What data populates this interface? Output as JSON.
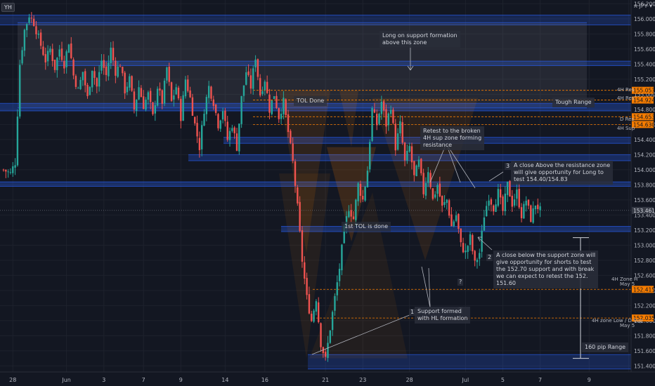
{
  "header": {
    "symbol_badge": "YH",
    "currency": "JPY"
  },
  "annotations": {
    "long_support": "Long on support formation\nabove this zone",
    "tol_done": "TOL Done",
    "tough_range": "Tough Range",
    "retest": "Retest to the broken\n4H sup zone forming\nresistance",
    "note3_num": "3",
    "note3": "A close Above the resistance zone\nwill give opportunity for Long to\ntest 154.40/154.83",
    "first_tol": "1st TOL is done",
    "note2_num": "2",
    "note2": "A close below the support zone will\ngive opportunity for shorts to test\nthe 152.70 support and with break\nwe can expect to retest the 152.\n151.60",
    "q1": "?",
    "q2": "?",
    "note1_num": "1",
    "note1": "Support formed\nwith HL formation",
    "pip_range": "160 pip Range"
  },
  "level_labels": {
    "h4_res_1": "4H Res",
    "h4_res_2": "4H Res",
    "d_res": "D Res",
    "h4_sup": "4H Sup",
    "h4_zone_h": "4H Zone H",
    "may5_1": "May 5",
    "h4_zone_low": "4H zone Low / D Sup",
    "may5_2": "May 5"
  },
  "price_tags": [
    {
      "label": "155.053",
      "value": 155.053,
      "bg": "#f57c00",
      "fg": "#131722"
    },
    {
      "label": "154.924",
      "value": 154.924,
      "bg": "#f57c00",
      "fg": "#131722"
    },
    {
      "label": "154.653",
      "value": 154.703,
      "bg": "#f57c00",
      "fg": "#131722"
    },
    {
      "label": "154.630",
      "value": 154.6,
      "bg": "#f57c00",
      "fg": "#131722"
    },
    {
      "label": "153.461",
      "value": 153.461,
      "bg": "#363a45",
      "fg": "#d1d4dc"
    },
    {
      "label": "152.415",
      "value": 152.415,
      "bg": "#f57c00",
      "fg": "#131722"
    },
    {
      "label": "152.035",
      "value": 152.035,
      "bg": "#f57c00",
      "fg": "#131722"
    }
  ],
  "colors": {
    "up": "#26a69a",
    "down": "#ef5350",
    "zone": "#2962ff",
    "orange": "#f57c00",
    "bg": "#131722"
  },
  "chart_data": {
    "type": "candlestick",
    "ylim": [
      151.32,
      156.25
    ],
    "y_ticks": [
      151.4,
      151.6,
      151.8,
      152.0,
      152.2,
      152.4,
      152.6,
      152.8,
      153.0,
      153.2,
      153.4,
      153.6,
      153.8,
      154.0,
      154.2,
      154.4,
      154.6,
      154.8,
      155.0,
      155.2,
      155.4,
      155.6,
      155.8,
      156.0,
      156.2
    ],
    "x_labels": [
      "28",
      "Jun",
      "3",
      "7",
      "9",
      "14",
      "16",
      "21",
      "23",
      "28",
      "Jul",
      "5",
      "7",
      "9",
      "14"
    ],
    "x_count": 250,
    "x_label_index": [
      4,
      27,
      43,
      60,
      76,
      95,
      112,
      138,
      154,
      174,
      198,
      214,
      230,
      251,
      268
    ],
    "path": [
      [
        0,
        154.0
      ],
      [
        3,
        153.95
      ],
      [
        5,
        154.1
      ],
      [
        7,
        155.4
      ],
      [
        9,
        155.85
      ],
      [
        11,
        156.05
      ],
      [
        13,
        155.95
      ],
      [
        15,
        155.75
      ],
      [
        18,
        155.45
      ],
      [
        20,
        155.6
      ],
      [
        22,
        155.35
      ],
      [
        24,
        155.6
      ],
      [
        26,
        155.4
      ],
      [
        28,
        155.7
      ],
      [
        30,
        155.25
      ],
      [
        32,
        155.05
      ],
      [
        34,
        155.3
      ],
      [
        36,
        154.95
      ],
      [
        38,
        155.35
      ],
      [
        40,
        155.1
      ],
      [
        42,
        155.45
      ],
      [
        44,
        155.25
      ],
      [
        46,
        155.6
      ],
      [
        48,
        155.3
      ],
      [
        50,
        155.4
      ],
      [
        52,
        155.05
      ],
      [
        54,
        155.2
      ],
      [
        56,
        154.8
      ],
      [
        58,
        155.1
      ],
      [
        60,
        154.85
      ],
      [
        62,
        155.0
      ],
      [
        64,
        154.7
      ],
      [
        66,
        155.1
      ],
      [
        68,
        154.9
      ],
      [
        70,
        155.35
      ],
      [
        72,
        154.9
      ],
      [
        74,
        155.1
      ],
      [
        76,
        154.7
      ],
      [
        78,
        155.2
      ],
      [
        80,
        154.95
      ],
      [
        82,
        154.6
      ],
      [
        84,
        154.3
      ],
      [
        86,
        154.8
      ],
      [
        88,
        155.1
      ],
      [
        90,
        154.9
      ],
      [
        92,
        154.6
      ],
      [
        94,
        154.8
      ],
      [
        96,
        154.4
      ],
      [
        98,
        154.6
      ],
      [
        100,
        154.3
      ],
      [
        102,
        154.95
      ],
      [
        104,
        155.3
      ],
      [
        106,
        155.1
      ],
      [
        108,
        155.5
      ],
      [
        110,
        155.0
      ],
      [
        112,
        155.2
      ],
      [
        114,
        154.8
      ],
      [
        116,
        155.0
      ],
      [
        118,
        154.7
      ],
      [
        120,
        154.9
      ],
      [
        122,
        154.5
      ],
      [
        124,
        154.1
      ],
      [
        126,
        153.5
      ],
      [
        128,
        152.8
      ],
      [
        130,
        152.3
      ],
      [
        132,
        152.0
      ],
      [
        134,
        152.3
      ],
      [
        136,
        151.7
      ],
      [
        138,
        151.48
      ],
      [
        140,
        151.9
      ],
      [
        142,
        152.3
      ],
      [
        144,
        152.7
      ],
      [
        146,
        153.2
      ],
      [
        148,
        153.5
      ],
      [
        150,
        153.35
      ],
      [
        152,
        153.8
      ],
      [
        154,
        153.6
      ],
      [
        156,
        154.0
      ],
      [
        158,
        154.8
      ],
      [
        160,
        154.6
      ],
      [
        162,
        154.9
      ],
      [
        164,
        154.6
      ],
      [
        166,
        154.85
      ],
      [
        168,
        154.3
      ],
      [
        170,
        154.6
      ],
      [
        172,
        154.1
      ],
      [
        174,
        154.3
      ],
      [
        176,
        153.9
      ],
      [
        178,
        154.1
      ],
      [
        180,
        153.7
      ],
      [
        182,
        154.0
      ],
      [
        184,
        153.6
      ],
      [
        186,
        153.8
      ],
      [
        188,
        153.5
      ],
      [
        190,
        153.6
      ],
      [
        192,
        153.25
      ],
      [
        194,
        153.4
      ],
      [
        196,
        153.0
      ],
      [
        198,
        152.9
      ],
      [
        200,
        153.1
      ],
      [
        202,
        152.75
      ],
      [
        204,
        152.9
      ],
      [
        206,
        153.4
      ],
      [
        208,
        153.65
      ],
      [
        210,
        153.5
      ],
      [
        212,
        153.7
      ],
      [
        214,
        153.45
      ],
      [
        216,
        153.8
      ],
      [
        218,
        153.55
      ],
      [
        220,
        153.7
      ],
      [
        222,
        153.4
      ],
      [
        224,
        153.6
      ],
      [
        226,
        153.35
      ],
      [
        228,
        153.55
      ],
      [
        230,
        153.461
      ]
    ],
    "series": [
      {
        "name": "USDJPY",
        "values": [
          154.0,
          153.95,
          155.85,
          156.05,
          155.6,
          155.4,
          155.3,
          155.35,
          155.45,
          155.6,
          155.4,
          155.05,
          154.85,
          155.1,
          155.35,
          155.2,
          154.8,
          154.6,
          154.3,
          155.1,
          154.9,
          154.6,
          154.4,
          154.95,
          155.3,
          155.5,
          155.2,
          154.7,
          154.5,
          154.1,
          153.5,
          152.8,
          152.0,
          151.7,
          151.48,
          151.9,
          152.3,
          152.7,
          153.2,
          153.5,
          153.8,
          154.0,
          154.8,
          154.6,
          154.9,
          154.85,
          154.3,
          154.1,
          153.9,
          153.7,
          153.6,
          153.5,
          153.25,
          153.0,
          152.9,
          152.75,
          152.9,
          153.4,
          153.65,
          153.7,
          153.8,
          153.55,
          153.6,
          153.35,
          153.55,
          153.461
        ]
      }
    ]
  }
}
